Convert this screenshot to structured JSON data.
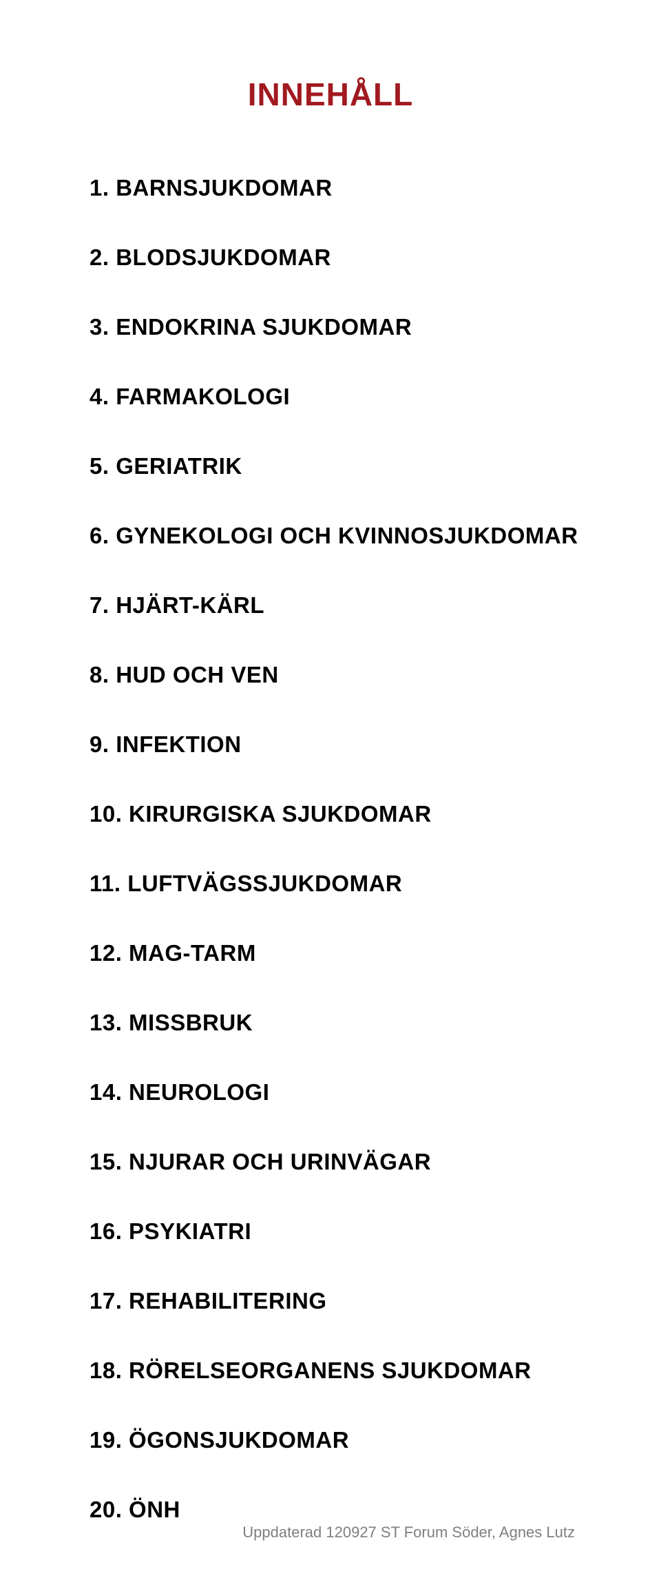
{
  "title": "INNEHÅLL",
  "title_color": "#a11a20",
  "text_color": "#000000",
  "background_color": "#ffffff",
  "footer_color": "#7f7f7f",
  "title_fontsize": 46,
  "item_fontsize": 33,
  "footer_fontsize": 22,
  "toc": [
    {
      "num": "1.",
      "label": "BARNSJUKDOMAR"
    },
    {
      "num": "2.",
      "label": "BLODSJUKDOMAR"
    },
    {
      "num": "3.",
      "label": "ENDOKRINA SJUKDOMAR"
    },
    {
      "num": "4.",
      "label": "FARMAKOLOGI"
    },
    {
      "num": "5.",
      "label": "GERIATRIK"
    },
    {
      "num": "6.",
      "label": "GYNEKOLOGI OCH KVINNOSJUKDOMAR"
    },
    {
      "num": "7.",
      "label": "HJÄRT-KÄRL"
    },
    {
      "num": "8.",
      "label": "HUD OCH VEN"
    },
    {
      "num": "9.",
      "label": "INFEKTION"
    },
    {
      "num": "10.",
      "label": "KIRURGISKA SJUKDOMAR"
    },
    {
      "num": "11.",
      "label": "LUFTVÄGSSJUKDOMAR"
    },
    {
      "num": "12.",
      "label": "MAG-TARM"
    },
    {
      "num": "13.",
      "label": "MISSBRUK"
    },
    {
      "num": "14.",
      "label": "NEUROLOGI"
    },
    {
      "num": "15.",
      "label": "NJURAR OCH URINVÄGAR"
    },
    {
      "num": "16.",
      "label": "PSYKIATRI"
    },
    {
      "num": "17.",
      "label": "REHABILITERING"
    },
    {
      "num": "18.",
      "label": "RÖRELSEORGANENS SJUKDOMAR"
    },
    {
      "num": "19.",
      "label": "ÖGONSJUKDOMAR"
    },
    {
      "num": "20.",
      "label": "ÖNH"
    }
  ],
  "footer": "Uppdaterad 120927 ST Forum Söder, Agnes Lutz"
}
